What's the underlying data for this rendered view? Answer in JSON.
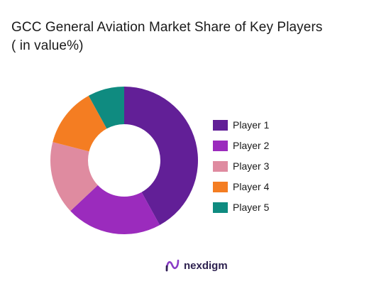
{
  "chart_data": {
    "type": "pie",
    "donut": true,
    "title_lines": [
      "GCC General Aviation Market Share of Key Players",
      "( in value%)"
    ],
    "categories": [
      "Player 1",
      "Player 2",
      "Player 3",
      "Player 4",
      "Player 5"
    ],
    "values": [
      42,
      21,
      16,
      13,
      8
    ],
    "colors": [
      "#621f97",
      "#9b2bbd",
      "#df8ba0",
      "#f47d22",
      "#0f8b80"
    ],
    "legend_position": "right"
  },
  "brand": {
    "name": "nexdigm",
    "color": "#2e2250",
    "accent": "#8a3cc7",
    "icon": "nexdigm-logo-icon"
  }
}
